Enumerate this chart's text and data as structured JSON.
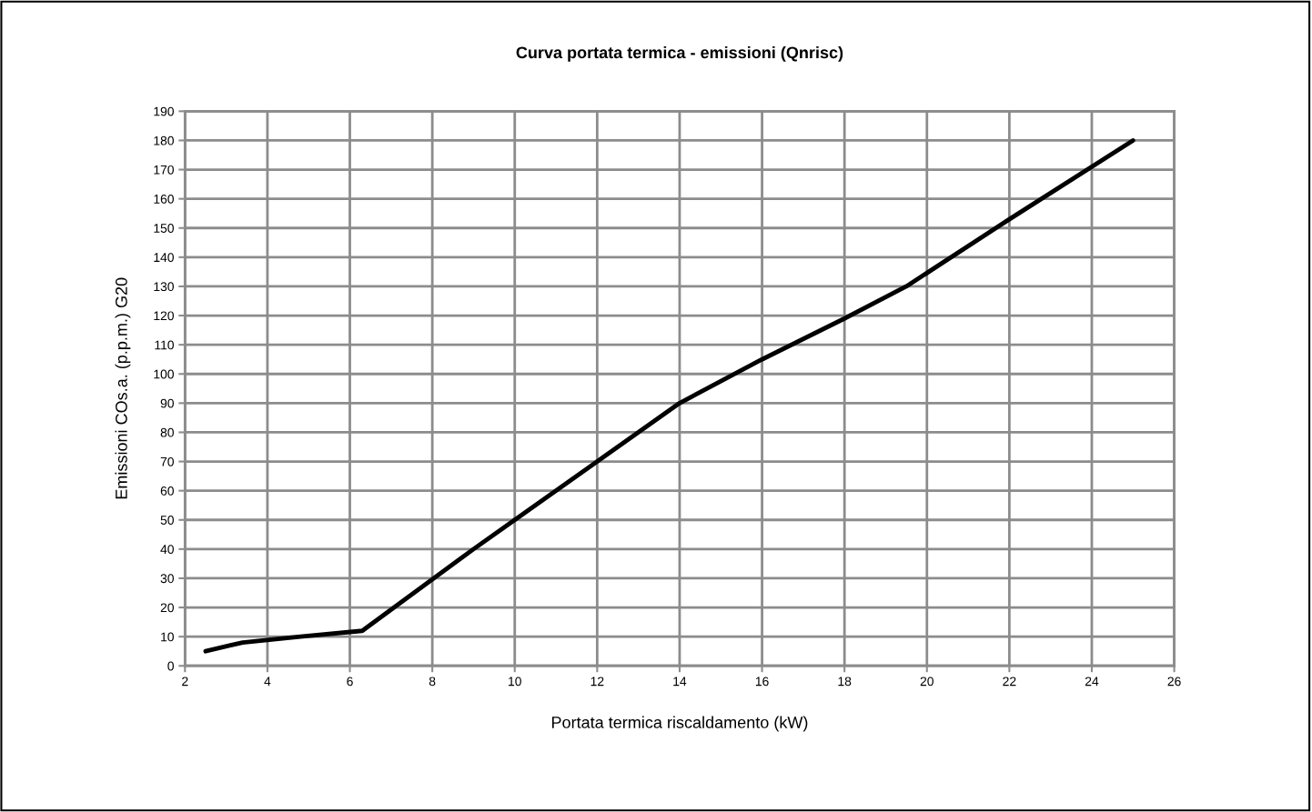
{
  "chart_data": {
    "type": "line",
    "title": "Curva portata termica - emissioni (Qnrisc)",
    "xlabel": "Portata termica riscaldamento (kW)",
    "ylabel": "Emissioni COs.a. (p.p.m.) G20",
    "series": [
      {
        "color": "#000000",
        "x": [
          2.5,
          3.4,
          4.8,
          6.3,
          9,
          10,
          12,
          14,
          16,
          18,
          19.5,
          22,
          25
        ],
        "values": [
          5,
          8,
          10,
          12,
          40,
          50,
          70,
          90,
          105,
          119,
          130,
          153,
          180
        ]
      }
    ],
    "xlim": [
      2,
      26
    ],
    "xticks": [
      2,
      4,
      6,
      8,
      10,
      12,
      14,
      16,
      18,
      20,
      22,
      24,
      26
    ],
    "ylim": [
      0,
      190
    ],
    "yticks": [
      0,
      10,
      20,
      30,
      40,
      50,
      60,
      70,
      80,
      90,
      100,
      110,
      120,
      130,
      140,
      150,
      160,
      170,
      180,
      190
    ],
    "grid": true,
    "marker": "none",
    "line_style": "solid",
    "legend": false
  }
}
